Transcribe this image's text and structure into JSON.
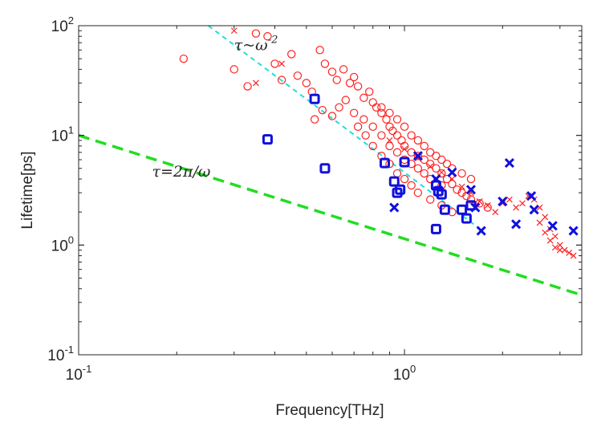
{
  "chart_data": {
    "type": "scatter",
    "title": "",
    "xlabel": "Frequency[THz]",
    "ylabel": "Lifetime[ps]",
    "xscale": "log",
    "yscale": "log",
    "xlim": [
      0.1,
      3.5
    ],
    "ylim": [
      0.1,
      100
    ],
    "grid": false,
    "x_ticks": [
      {
        "value": 0.1,
        "base": "10",
        "exp": "-1"
      },
      {
        "value": 1,
        "base": "10",
        "exp": "0"
      }
    ],
    "y_ticks": [
      {
        "value": 0.1,
        "base": "10",
        "exp": "-1"
      },
      {
        "value": 1,
        "base": "10",
        "exp": "0"
      },
      {
        "value": 10,
        "base": "10",
        "exp": "1"
      },
      {
        "value": 100,
        "base": "10",
        "exp": "2"
      }
    ],
    "annotations": [
      {
        "text": "τ~ω",
        "sup": "-2",
        "x": 0.3,
        "y": 60
      },
      {
        "text": "τ=2π/ω",
        "x": 0.168,
        "y": 4.2
      }
    ],
    "reference_lines": [
      {
        "formula": "tau = 2*pi/omega",
        "color": "#22dd22",
        "style": "dashed",
        "points": [
          [
            0.1,
            10
          ],
          [
            3.5,
            0.35
          ]
        ]
      },
      {
        "formula": "tau ~ omega^-2",
        "color": "#22dddd",
        "style": "dashed",
        "points": [
          [
            0.25,
            100
          ],
          [
            1.68,
            1.45
          ]
        ]
      }
    ],
    "series": [
      {
        "marker": "circle",
        "color": "#ff2020",
        "points": [
          [
            0.21,
            50
          ],
          [
            0.3,
            40
          ],
          [
            0.33,
            28
          ],
          [
            0.35,
            85
          ],
          [
            0.38,
            80
          ],
          [
            0.4,
            45
          ],
          [
            0.42,
            32
          ],
          [
            0.45,
            55
          ],
          [
            0.47,
            35
          ],
          [
            0.5,
            30
          ],
          [
            0.52,
            25
          ],
          [
            0.55,
            60
          ],
          [
            0.57,
            45
          ],
          [
            0.6,
            38
          ],
          [
            0.62,
            32
          ],
          [
            0.65,
            40
          ],
          [
            0.68,
            30
          ],
          [
            0.7,
            34
          ],
          [
            0.72,
            28
          ],
          [
            0.75,
            22
          ],
          [
            0.78,
            25
          ],
          [
            0.8,
            20
          ],
          [
            0.82,
            18
          ],
          [
            0.85,
            16
          ],
          [
            0.88,
            14
          ],
          [
            0.9,
            12
          ],
          [
            0.92,
            11
          ],
          [
            0.95,
            10
          ],
          [
            0.98,
            9
          ],
          [
            1.0,
            8
          ],
          [
            1.05,
            7
          ],
          [
            1.1,
            6.5
          ],
          [
            1.15,
            6
          ],
          [
            1.2,
            5.5
          ],
          [
            1.25,
            5
          ],
          [
            1.3,
            4.5
          ],
          [
            1.35,
            4
          ],
          [
            1.4,
            3.6
          ],
          [
            1.45,
            3.2
          ],
          [
            1.5,
            3
          ],
          [
            1.55,
            2.8
          ],
          [
            1.6,
            2.6
          ],
          [
            1.7,
            2.4
          ],
          [
            1.8,
            2.2
          ],
          [
            0.53,
            14
          ],
          [
            0.56,
            17
          ],
          [
            0.6,
            15
          ],
          [
            0.63,
            18
          ],
          [
            0.66,
            21
          ],
          [
            0.7,
            16
          ],
          [
            0.75,
            14
          ],
          [
            0.8,
            12
          ],
          [
            0.85,
            10
          ],
          [
            0.9,
            8
          ],
          [
            0.95,
            7
          ],
          [
            1.0,
            6
          ],
          [
            1.05,
            5.5
          ],
          [
            1.1,
            5
          ],
          [
            1.15,
            4.5
          ],
          [
            1.2,
            4
          ],
          [
            1.3,
            3.5
          ],
          [
            0.72,
            12
          ],
          [
            0.76,
            10
          ],
          [
            0.8,
            8
          ],
          [
            0.85,
            6.5
          ],
          [
            0.9,
            5.5
          ],
          [
            0.95,
            4.5
          ],
          [
            1.0,
            4
          ],
          [
            1.05,
            3.5
          ],
          [
            1.1,
            3
          ],
          [
            1.2,
            2.6
          ],
          [
            1.3,
            2.3
          ],
          [
            1.4,
            2.0
          ],
          [
            0.85,
            18
          ],
          [
            0.9,
            16
          ],
          [
            0.95,
            14
          ],
          [
            1.0,
            12
          ],
          [
            1.05,
            10
          ],
          [
            1.1,
            9
          ],
          [
            1.15,
            8
          ],
          [
            1.2,
            7
          ],
          [
            1.25,
            6.5
          ],
          [
            1.3,
            6
          ],
          [
            1.35,
            5.5
          ],
          [
            1.4,
            5
          ],
          [
            1.5,
            4.5
          ],
          [
            1.6,
            4
          ]
        ]
      },
      {
        "marker": "x",
        "color": "#ff2020",
        "points": [
          [
            0.3,
            90
          ],
          [
            0.35,
            30
          ],
          [
            0.42,
            45
          ],
          [
            0.9,
            9
          ],
          [
            1.0,
            7.5
          ],
          [
            1.1,
            6.2
          ],
          [
            1.2,
            5.2
          ],
          [
            1.3,
            4.6
          ],
          [
            1.4,
            4.0
          ],
          [
            1.5,
            3.4
          ],
          [
            1.6,
            3.0
          ],
          [
            1.7,
            2.5
          ],
          [
            1.8,
            2.3
          ],
          [
            1.9,
            2.0
          ],
          [
            2.0,
            2.4
          ],
          [
            2.1,
            2.6
          ],
          [
            2.2,
            2.2
          ],
          [
            2.3,
            2.4
          ],
          [
            2.4,
            2.8
          ],
          [
            2.5,
            2.6
          ],
          [
            2.6,
            2.2
          ],
          [
            2.7,
            1.8
          ],
          [
            2.8,
            1.4
          ],
          [
            2.9,
            1.2
          ],
          [
            3.0,
            1.0
          ],
          [
            3.1,
            0.9
          ],
          [
            3.2,
            0.85
          ],
          [
            3.3,
            0.8
          ],
          [
            2.6,
            1.6
          ],
          [
            2.7,
            1.3
          ],
          [
            2.8,
            1.1
          ],
          [
            2.9,
            0.95
          ],
          [
            3.0,
            0.9
          ]
        ]
      },
      {
        "marker": "square",
        "color": "#1010dd",
        "points": [
          [
            0.38,
            9.2
          ],
          [
            0.53,
            21.5
          ],
          [
            0.57,
            5.0
          ],
          [
            0.87,
            5.6
          ],
          [
            0.93,
            3.8
          ],
          [
            0.95,
            3.0
          ],
          [
            0.97,
            3.2
          ],
          [
            1.0,
            5.7
          ],
          [
            1.25,
            3.5
          ],
          [
            1.27,
            3.1
          ],
          [
            1.3,
            2.9
          ],
          [
            1.33,
            2.1
          ],
          [
            1.25,
            1.4
          ],
          [
            1.5,
            2.1
          ],
          [
            1.55,
            1.75
          ],
          [
            1.6,
            2.3
          ]
        ]
      },
      {
        "marker": "x",
        "color": "#1010dd",
        "points": [
          [
            0.93,
            2.2
          ],
          [
            1.1,
            6.5
          ],
          [
            1.25,
            4.0
          ],
          [
            1.4,
            4.6
          ],
          [
            1.6,
            3.2
          ],
          [
            1.65,
            2.2
          ],
          [
            1.72,
            1.35
          ],
          [
            2.0,
            2.5
          ],
          [
            2.1,
            5.6
          ],
          [
            2.2,
            1.55
          ],
          [
            2.45,
            2.8
          ],
          [
            2.5,
            2.1
          ],
          [
            2.85,
            1.5
          ],
          [
            3.3,
            1.35
          ]
        ]
      }
    ]
  }
}
